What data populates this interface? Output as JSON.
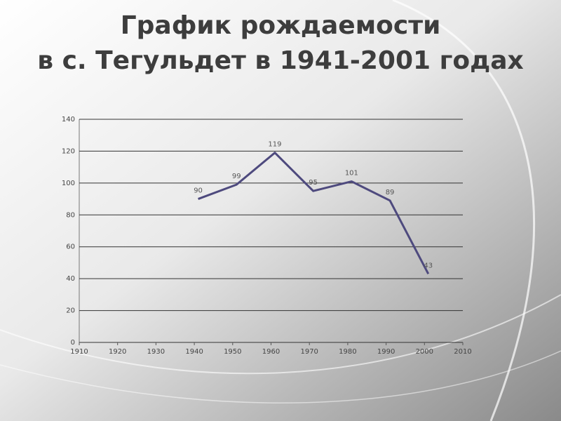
{
  "chart_data": {
    "type": "line",
    "title": [
      "График рождаемости",
      "в с. Тегульдет в 1941-2001 годах"
    ],
    "x": [
      1941,
      1951,
      1961,
      1971,
      1981,
      1991,
      2001
    ],
    "series": [
      {
        "color": "#4e4a7e",
        "values": [
          90,
          99,
          119,
          95,
          101,
          89,
          43
        ]
      }
    ],
    "xlim": [
      1910,
      2010
    ],
    "xticks": [
      1910,
      1920,
      1930,
      1940,
      1950,
      1960,
      1970,
      1980,
      1990,
      2000,
      2010
    ],
    "ylim": [
      0,
      140
    ],
    "yticks": [
      0,
      20,
      40,
      60,
      80,
      100,
      120,
      140
    ],
    "grid": true,
    "data_labels": true
  }
}
